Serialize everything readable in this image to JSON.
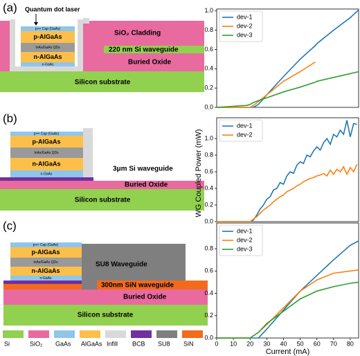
{
  "diagrams": {
    "a": {
      "label": "(a)",
      "pointer": "Quantum dot laser",
      "layers": [
        "p++ Cap (GaAs)",
        "p-AlGaAs",
        "InAs/GaAs QDs",
        "n-AlGaAs",
        "n-GaAs"
      ],
      "cladding": "SiO₂ Cladding",
      "waveguide": "220 nm Si waveguide",
      "oxide": "Buried Oxide",
      "substrate": "Silicon substrate"
    },
    "b": {
      "label": "(b)",
      "layers": [
        "p++ Cap (GaAs)",
        "p-AlGaAs",
        "InAs/GaAs QDs",
        "n-AlGaAs",
        "n-GaAs"
      ],
      "waveguide": "3μm Si waveguide",
      "oxide": "Buried Oxide",
      "substrate": "Silicon substrate"
    },
    "c": {
      "label": "(c)",
      "layers": [
        "p++ Cap (GaAs)",
        "p-AlGaAs",
        "InAs/GaAs QDs",
        "n-AlGaAs",
        "n-GaAs"
      ],
      "su8": "SU8 Waveguide",
      "waveguide": "300nm SiN waveguide",
      "oxide": "Buried Oxide",
      "substrate": "Silicon substrate"
    }
  },
  "materials": [
    {
      "name": "Si",
      "color": "#92d050"
    },
    {
      "name": "SiO₂",
      "color": "#e86a9e"
    },
    {
      "name": "GaAs",
      "color": "#8fc6ea"
    },
    {
      "name": "AlGaAs",
      "color": "#fbbf4a"
    },
    {
      "name": "Infill",
      "color": "#d9d9d9"
    },
    {
      "name": "BCB",
      "color": "#7030a0"
    },
    {
      "name": "SU8",
      "color": "#7f7f7f"
    },
    {
      "name": "SiN",
      "color": "#f26b1d"
    }
  ],
  "chart_data": [
    {
      "type": "line",
      "legend": "upper left",
      "x": [
        0,
        18,
        20,
        22,
        25,
        30,
        40,
        50,
        59,
        60,
        70,
        80,
        85
      ],
      "series": [
        {
          "name": "dev-1",
          "color": "#1f77b4",
          "values": [
            0,
            0,
            0,
            0,
            0.03,
            0.13,
            0.32,
            0.5,
            0.64,
            0.66,
            0.8,
            0.93,
            1.01
          ]
        },
        {
          "name": "dev-2",
          "color": "#ff7f0e",
          "values": [
            0,
            0,
            0,
            0.02,
            0.06,
            0.13,
            0.27,
            0.37,
            0.47,
            null,
            null,
            null,
            null
          ]
        },
        {
          "name": "dev-3",
          "color": "#2ca02c",
          "values": [
            0,
            0.02,
            0.03,
            0.05,
            0.07,
            0.1,
            0.16,
            0.21,
            0.26,
            0.27,
            0.31,
            0.35,
            0.37
          ]
        }
      ],
      "xlim": [
        0,
        85
      ],
      "ylim": [
        0,
        1.02
      ],
      "yticks": [
        {
          "value": 0,
          "label": "0.0"
        },
        0.2,
        0.4,
        0.6,
        0.8,
        {
          "value": 1,
          "label": "1.0"
        }
      ]
    },
    {
      "type": "line",
      "legend": "upper left",
      "ylabel": "WG Coupled Power (mW)",
      "x": [
        0,
        20,
        22,
        24,
        26,
        28,
        30,
        32,
        34,
        36,
        38,
        40,
        42,
        44,
        46,
        48,
        50,
        52,
        54,
        56,
        58,
        60,
        62,
        64,
        66,
        68,
        70,
        72,
        74,
        76,
        78,
        80,
        82,
        84
      ],
      "series": [
        {
          "name": "dev-1",
          "color": "#1f77b4",
          "values": [
            0,
            0,
            0.02,
            0.08,
            0.15,
            0.2,
            0.27,
            0.3,
            0.38,
            0.4,
            0.47,
            0.45,
            0.55,
            0.6,
            0.58,
            0.68,
            0.72,
            0.7,
            0.8,
            0.78,
            0.85,
            0.9,
            0.86,
            0.95,
            1.0,
            0.93,
            1.05,
            1.02,
            1.1,
            1.05,
            1.22,
            1.02,
            1.18,
            1.17
          ]
        },
        {
          "name": "dev-2",
          "color": "#ff7f0e",
          "values": [
            0,
            0,
            0.03,
            0.06,
            0.1,
            0.14,
            0.17,
            0.2,
            0.24,
            0.27,
            0.3,
            0.32,
            0.36,
            0.38,
            0.4,
            0.43,
            0.45,
            0.48,
            0.5,
            0.52,
            0.53,
            0.55,
            0.56,
            0.58,
            0.55,
            0.62,
            0.57,
            0.63,
            0.6,
            0.66,
            0.57,
            0.65,
            0.6,
            0.69
          ]
        }
      ],
      "xlim": [
        0,
        85
      ],
      "ylim": [
        0,
        1.25
      ],
      "yticks": [
        {
          "value": 0,
          "label": "0.0"
        },
        0.2,
        0.4,
        0.6,
        0.8,
        {
          "value": 1,
          "label": "1.0"
        }
      ]
    },
    {
      "type": "line",
      "legend": "upper left",
      "xlabel": "Current (mA)",
      "x": [
        0,
        20,
        25,
        30,
        40,
        50,
        60,
        70,
        80,
        85
      ],
      "series": [
        {
          "name": "dev-1",
          "color": "#1f77b4",
          "values": [
            0,
            0,
            0,
            0.08,
            0.25,
            0.42,
            0.56,
            0.7,
            0.83,
            0.87
          ]
        },
        {
          "name": "dev-2",
          "color": "#ff7f0e",
          "values": [
            0,
            0,
            0.05,
            0.12,
            0.27,
            0.42,
            0.52,
            0.58,
            0.6,
            0.61
          ]
        },
        {
          "name": "dev-3",
          "color": "#2ca02c",
          "values": [
            0,
            0,
            0.05,
            0.13,
            0.24,
            0.35,
            0.42,
            0.46,
            0.49,
            0.5
          ]
        }
      ],
      "xlim": [
        0,
        85
      ],
      "ylim": [
        0,
        1.03
      ],
      "xticks": [
        0,
        10,
        20,
        30,
        40,
        50,
        60,
        70,
        80
      ],
      "yticks": [
        {
          "value": 0,
          "label": "0.0"
        },
        0.2,
        0.4,
        0.6,
        0.8
      ]
    }
  ]
}
